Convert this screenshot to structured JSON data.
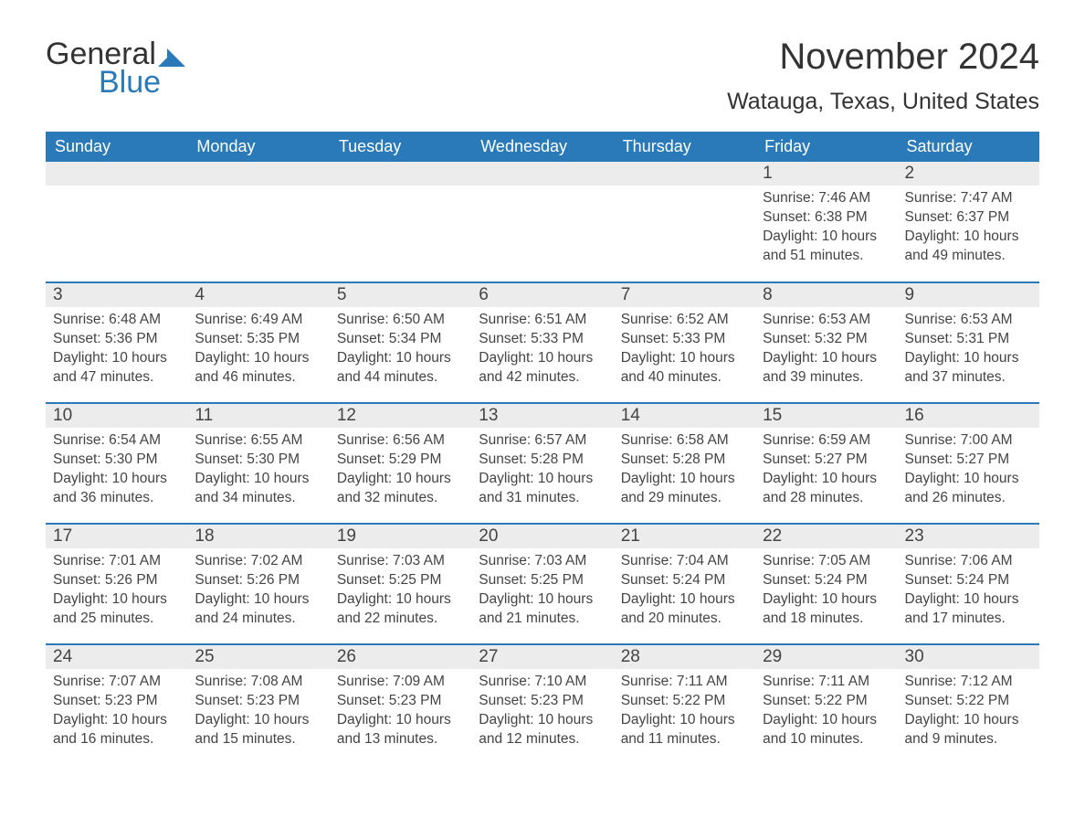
{
  "logo": {
    "text1": "General",
    "text2": "Blue",
    "color_dark": "#333333",
    "color_blue": "#2a7ab9"
  },
  "title": "November 2024",
  "location": "Watauga, Texas, United States",
  "style": {
    "header_bg": "#2a7ab9",
    "header_text_color": "#ffffff",
    "daynum_bg": "#ececec",
    "row_divider_color": "#2a7ab9",
    "body_text_color": "#444444",
    "page_bg": "#ffffff",
    "title_fontsize": 40,
    "location_fontsize": 25,
    "header_fontsize": 18,
    "daynum_fontsize": 19,
    "body_fontsize": 15.5
  },
  "weekdays": [
    "Sunday",
    "Monday",
    "Tuesday",
    "Wednesday",
    "Thursday",
    "Friday",
    "Saturday"
  ],
  "weeks": [
    [
      {
        "empty": true
      },
      {
        "empty": true
      },
      {
        "empty": true
      },
      {
        "empty": true
      },
      {
        "empty": true
      },
      {
        "day": "1",
        "sunrise": "Sunrise: 7:46 AM",
        "sunset": "Sunset: 6:38 PM",
        "daylight": "Daylight: 10 hours and 51 minutes."
      },
      {
        "day": "2",
        "sunrise": "Sunrise: 7:47 AM",
        "sunset": "Sunset: 6:37 PM",
        "daylight": "Daylight: 10 hours and 49 minutes."
      }
    ],
    [
      {
        "day": "3",
        "sunrise": "Sunrise: 6:48 AM",
        "sunset": "Sunset: 5:36 PM",
        "daylight": "Daylight: 10 hours and 47 minutes."
      },
      {
        "day": "4",
        "sunrise": "Sunrise: 6:49 AM",
        "sunset": "Sunset: 5:35 PM",
        "daylight": "Daylight: 10 hours and 46 minutes."
      },
      {
        "day": "5",
        "sunrise": "Sunrise: 6:50 AM",
        "sunset": "Sunset: 5:34 PM",
        "daylight": "Daylight: 10 hours and 44 minutes."
      },
      {
        "day": "6",
        "sunrise": "Sunrise: 6:51 AM",
        "sunset": "Sunset: 5:33 PM",
        "daylight": "Daylight: 10 hours and 42 minutes."
      },
      {
        "day": "7",
        "sunrise": "Sunrise: 6:52 AM",
        "sunset": "Sunset: 5:33 PM",
        "daylight": "Daylight: 10 hours and 40 minutes."
      },
      {
        "day": "8",
        "sunrise": "Sunrise: 6:53 AM",
        "sunset": "Sunset: 5:32 PM",
        "daylight": "Daylight: 10 hours and 39 minutes."
      },
      {
        "day": "9",
        "sunrise": "Sunrise: 6:53 AM",
        "sunset": "Sunset: 5:31 PM",
        "daylight": "Daylight: 10 hours and 37 minutes."
      }
    ],
    [
      {
        "day": "10",
        "sunrise": "Sunrise: 6:54 AM",
        "sunset": "Sunset: 5:30 PM",
        "daylight": "Daylight: 10 hours and 36 minutes."
      },
      {
        "day": "11",
        "sunrise": "Sunrise: 6:55 AM",
        "sunset": "Sunset: 5:30 PM",
        "daylight": "Daylight: 10 hours and 34 minutes."
      },
      {
        "day": "12",
        "sunrise": "Sunrise: 6:56 AM",
        "sunset": "Sunset: 5:29 PM",
        "daylight": "Daylight: 10 hours and 32 minutes."
      },
      {
        "day": "13",
        "sunrise": "Sunrise: 6:57 AM",
        "sunset": "Sunset: 5:28 PM",
        "daylight": "Daylight: 10 hours and 31 minutes."
      },
      {
        "day": "14",
        "sunrise": "Sunrise: 6:58 AM",
        "sunset": "Sunset: 5:28 PM",
        "daylight": "Daylight: 10 hours and 29 minutes."
      },
      {
        "day": "15",
        "sunrise": "Sunrise: 6:59 AM",
        "sunset": "Sunset: 5:27 PM",
        "daylight": "Daylight: 10 hours and 28 minutes."
      },
      {
        "day": "16",
        "sunrise": "Sunrise: 7:00 AM",
        "sunset": "Sunset: 5:27 PM",
        "daylight": "Daylight: 10 hours and 26 minutes."
      }
    ],
    [
      {
        "day": "17",
        "sunrise": "Sunrise: 7:01 AM",
        "sunset": "Sunset: 5:26 PM",
        "daylight": "Daylight: 10 hours and 25 minutes."
      },
      {
        "day": "18",
        "sunrise": "Sunrise: 7:02 AM",
        "sunset": "Sunset: 5:26 PM",
        "daylight": "Daylight: 10 hours and 24 minutes."
      },
      {
        "day": "19",
        "sunrise": "Sunrise: 7:03 AM",
        "sunset": "Sunset: 5:25 PM",
        "daylight": "Daylight: 10 hours and 22 minutes."
      },
      {
        "day": "20",
        "sunrise": "Sunrise: 7:03 AM",
        "sunset": "Sunset: 5:25 PM",
        "daylight": "Daylight: 10 hours and 21 minutes."
      },
      {
        "day": "21",
        "sunrise": "Sunrise: 7:04 AM",
        "sunset": "Sunset: 5:24 PM",
        "daylight": "Daylight: 10 hours and 20 minutes."
      },
      {
        "day": "22",
        "sunrise": "Sunrise: 7:05 AM",
        "sunset": "Sunset: 5:24 PM",
        "daylight": "Daylight: 10 hours and 18 minutes."
      },
      {
        "day": "23",
        "sunrise": "Sunrise: 7:06 AM",
        "sunset": "Sunset: 5:24 PM",
        "daylight": "Daylight: 10 hours and 17 minutes."
      }
    ],
    [
      {
        "day": "24",
        "sunrise": "Sunrise: 7:07 AM",
        "sunset": "Sunset: 5:23 PM",
        "daylight": "Daylight: 10 hours and 16 minutes."
      },
      {
        "day": "25",
        "sunrise": "Sunrise: 7:08 AM",
        "sunset": "Sunset: 5:23 PM",
        "daylight": "Daylight: 10 hours and 15 minutes."
      },
      {
        "day": "26",
        "sunrise": "Sunrise: 7:09 AM",
        "sunset": "Sunset: 5:23 PM",
        "daylight": "Daylight: 10 hours and 13 minutes."
      },
      {
        "day": "27",
        "sunrise": "Sunrise: 7:10 AM",
        "sunset": "Sunset: 5:23 PM",
        "daylight": "Daylight: 10 hours and 12 minutes."
      },
      {
        "day": "28",
        "sunrise": "Sunrise: 7:11 AM",
        "sunset": "Sunset: 5:22 PM",
        "daylight": "Daylight: 10 hours and 11 minutes."
      },
      {
        "day": "29",
        "sunrise": "Sunrise: 7:11 AM",
        "sunset": "Sunset: 5:22 PM",
        "daylight": "Daylight: 10 hours and 10 minutes."
      },
      {
        "day": "30",
        "sunrise": "Sunrise: 7:12 AM",
        "sunset": "Sunset: 5:22 PM",
        "daylight": "Daylight: 10 hours and 9 minutes."
      }
    ]
  ]
}
